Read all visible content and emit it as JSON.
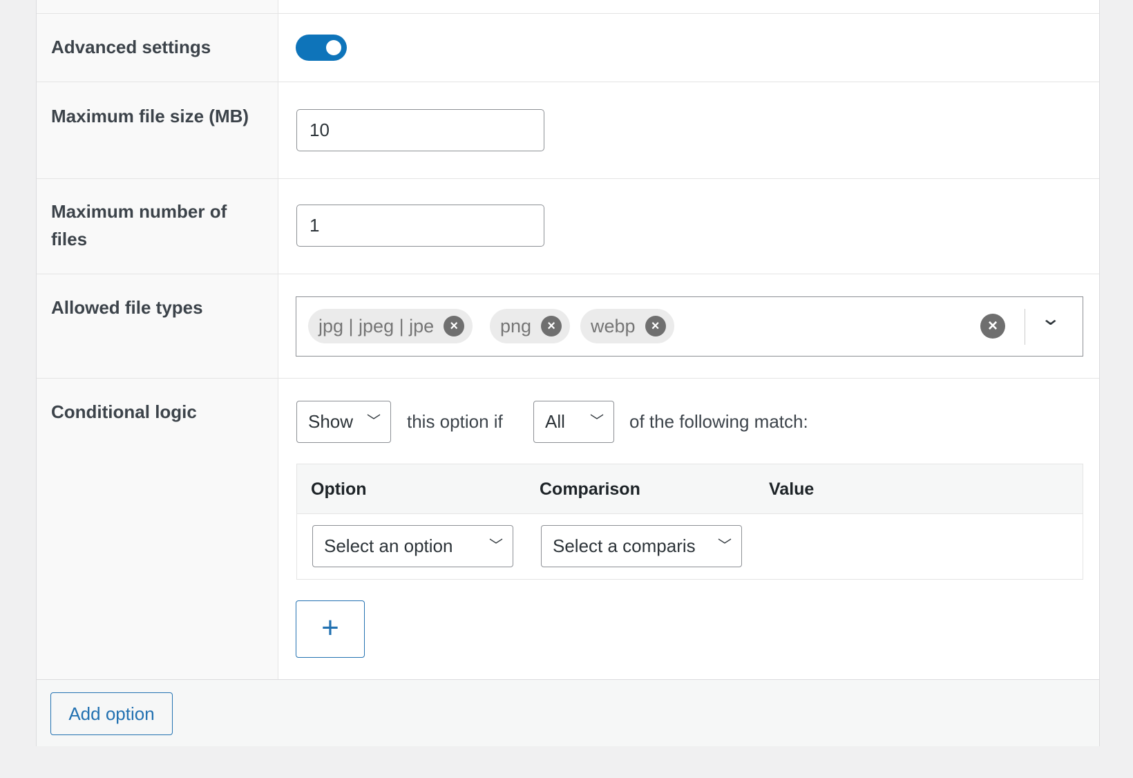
{
  "colors": {
    "accent": "#2271b1",
    "toggle_on": "#0e74ba"
  },
  "rows": {
    "advanced": {
      "label": "Advanced settings",
      "toggle_on": true
    },
    "max_size": {
      "label": "Maximum file size (MB)",
      "value": "10"
    },
    "max_files": {
      "label": "Maximum number of files",
      "value": "1"
    },
    "file_types": {
      "label": "Allowed file types",
      "chips": [
        "jpg | jpeg | jpe",
        "png",
        "webp"
      ],
      "chip_remove_icon": "×",
      "clear_icon": "×",
      "dropdown_icon": "⌄"
    },
    "conditional": {
      "label": "Conditional logic",
      "action_select": "Show",
      "text_middle": "this option if",
      "match_select": "All",
      "text_end": "of the following match:",
      "table": {
        "headers": [
          "Option",
          "Comparison",
          "Value"
        ],
        "option_select": "Select an option",
        "comparison_select": "Select a comparis"
      },
      "add_rule_label": "+"
    }
  },
  "footer": {
    "add_option_label": "Add option"
  }
}
